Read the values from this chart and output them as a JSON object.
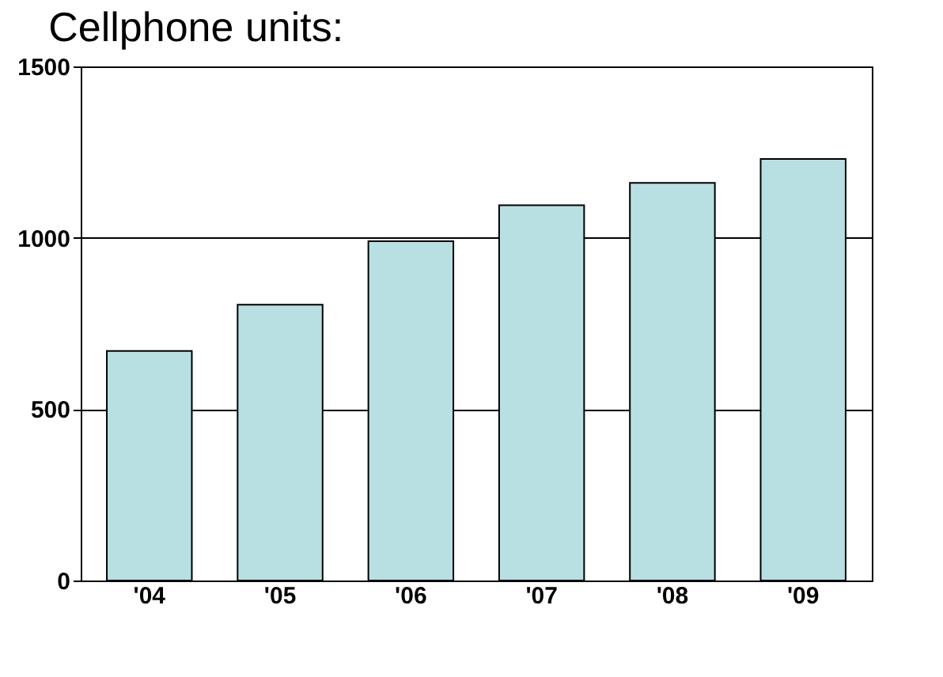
{
  "chart_data": {
    "type": "bar",
    "title": "Cellphone units:",
    "categories": [
      "'04",
      "'05",
      "'06",
      "'07",
      "'08",
      "'09"
    ],
    "values": [
      670,
      805,
      990,
      1095,
      1160,
      1230
    ],
    "color": "#b8e0e2",
    "ylim": [
      0,
      1500
    ],
    "yticks": [
      0,
      500,
      1000,
      1500
    ],
    "grid": "y"
  }
}
